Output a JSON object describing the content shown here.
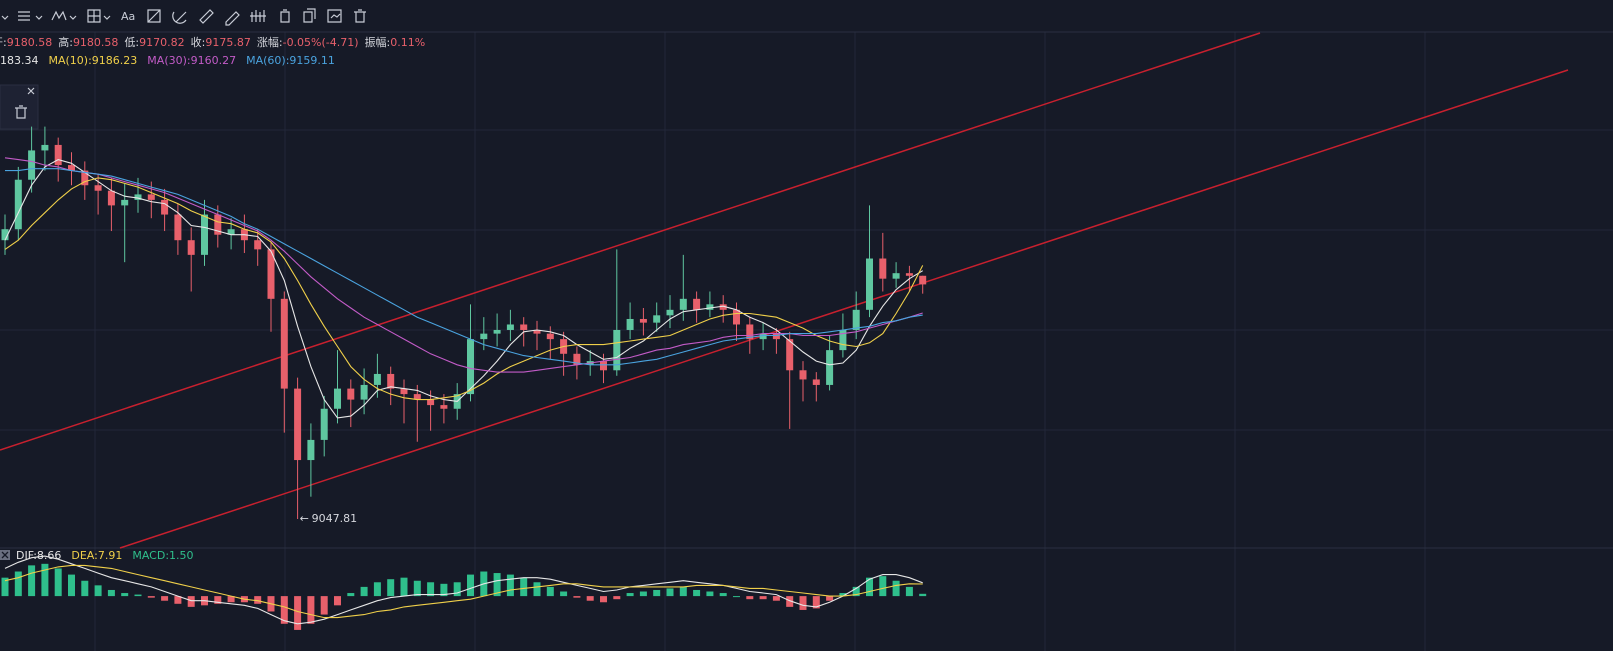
{
  "toolbar": {
    "text_tool": "Aa"
  },
  "ohlc_header": [
    {
      "label": "开:",
      "value": "9180.58"
    },
    {
      "label": "高:",
      "value": "9180.58"
    },
    {
      "label": "低:",
      "value": "9170.82"
    },
    {
      "label": "收:",
      "value": "9175.87"
    },
    {
      "label": "涨幅:",
      "value": "-0.05%(-4.71)"
    },
    {
      "label": "振幅:",
      "value": "0.11%"
    }
  ],
  "ma_legend": [
    {
      "text": "183.34",
      "color": "#e6e6e6"
    },
    {
      "text": "MA(10):9186.23",
      "color": "#f0d04a"
    },
    {
      "text": "MA(30):9160.27",
      "color": "#c25bc7"
    },
    {
      "text": "MA(60):9159.11",
      "color": "#4aa3df"
    }
  ],
  "macd_legend": [
    {
      "text": "DIF:8.66",
      "color": "#e6e6e6"
    },
    {
      "text": "DEA:7.91",
      "color": "#f0d04a"
    },
    {
      "text": "MACD:1.50",
      "color": "#2fbf8c"
    }
  ],
  "chart_data": [
    {
      "type": "candlestick",
      "ylim": [
        9032,
        9312
      ],
      "up_color": "#5fc7a0",
      "down_color": "#e8606b",
      "candles": [
        [
          9200,
          9214,
          9192,
          9206
        ],
        [
          9206,
          9240,
          9200,
          9233
        ],
        [
          9233,
          9262,
          9226,
          9249
        ],
        [
          9249,
          9262,
          9238,
          9252
        ],
        [
          9252,
          9256,
          9232,
          9241
        ],
        [
          9241,
          9248,
          9230,
          9238
        ],
        [
          9238,
          9243,
          9222,
          9230
        ],
        [
          9230,
          9236,
          9214,
          9227
        ],
        [
          9227,
          9234,
          9205,
          9219
        ],
        [
          9219,
          9231,
          9188,
          9222
        ],
        [
          9222,
          9234,
          9215,
          9225
        ],
        [
          9225,
          9232,
          9212,
          9222
        ],
        [
          9222,
          9228,
          9205,
          9214
        ],
        [
          9214,
          9220,
          9192,
          9200
        ],
        [
          9200,
          9207,
          9172,
          9192
        ],
        [
          9192,
          9222,
          9186,
          9214
        ],
        [
          9214,
          9219,
          9196,
          9203
        ],
        [
          9203,
          9212,
          9195,
          9206
        ],
        [
          9206,
          9214,
          9193,
          9200
        ],
        [
          9200,
          9206,
          9186,
          9195
        ],
        [
          9195,
          9199,
          9150,
          9168
        ],
        [
          9168,
          9172,
          9095,
          9119
        ],
        [
          9119,
          9125,
          9047.81,
          9080
        ],
        [
          9080,
          9100,
          9060,
          9091
        ],
        [
          9091,
          9115,
          9082,
          9108
        ],
        [
          9108,
          9140,
          9100,
          9119
        ],
        [
          9119,
          9124,
          9098,
          9113
        ],
        [
          9113,
          9130,
          9105,
          9121
        ],
        [
          9121,
          9138,
          9114,
          9127
        ],
        [
          9127,
          9131,
          9110,
          9119
        ],
        [
          9119,
          9124,
          9100,
          9116
        ],
        [
          9116,
          9121,
          9090,
          9113
        ],
        [
          9113,
          9118,
          9096,
          9110
        ],
        [
          9110,
          9116,
          9100,
          9108
        ],
        [
          9108,
          9122,
          9102,
          9116
        ],
        [
          9116,
          9165,
          9112,
          9146
        ],
        [
          9146,
          9158,
          9140,
          9149
        ],
        [
          9149,
          9160,
          9142,
          9151
        ],
        [
          9151,
          9162,
          9145,
          9154
        ],
        [
          9154,
          9158,
          9142,
          9151
        ],
        [
          9151,
          9156,
          9140,
          9149
        ],
        [
          9149,
          9153,
          9135,
          9146
        ],
        [
          9146,
          9150,
          9126,
          9138
        ],
        [
          9138,
          9142,
          9124,
          9132
        ],
        [
          9132,
          9140,
          9126,
          9134
        ],
        [
          9134,
          9138,
          9122,
          9129
        ],
        [
          9129,
          9195,
          9126,
          9151
        ],
        [
          9151,
          9166,
          9146,
          9157
        ],
        [
          9157,
          9163,
          9148,
          9155
        ],
        [
          9155,
          9166,
          9150,
          9159
        ],
        [
          9159,
          9170,
          9152,
          9162
        ],
        [
          9162,
          9192,
          9156,
          9168
        ],
        [
          9168,
          9172,
          9155,
          9162
        ],
        [
          9162,
          9172,
          9158,
          9165
        ],
        [
          9165,
          9170,
          9155,
          9162
        ],
        [
          9162,
          9166,
          9145,
          9154
        ],
        [
          9154,
          9158,
          9138,
          9146
        ],
        [
          9146,
          9155,
          9140,
          9149
        ],
        [
          9149,
          9152,
          9138,
          9146
        ],
        [
          9146,
          9150,
          9097,
          9129
        ],
        [
          9129,
          9134,
          9112,
          9124
        ],
        [
          9124,
          9128,
          9112,
          9121
        ],
        [
          9121,
          9148,
          9118,
          9140
        ],
        [
          9140,
          9160,
          9136,
          9151
        ],
        [
          9151,
          9172,
          9146,
          9162
        ],
        [
          9162,
          9219,
          9158,
          9190
        ],
        [
          9190,
          9204,
          9172,
          9179
        ],
        [
          9179,
          9188,
          9174,
          9182
        ],
        [
          9182,
          9186,
          9172,
          9180.58
        ],
        [
          9180.58,
          9180.58,
          9170.82,
          9175.87
        ]
      ],
      "series": [
        {
          "color": "#e6e6e6",
          "values": [
            9200,
            9215,
            9230,
            9240,
            9244,
            9242,
            9237,
            9232,
            9227,
            9224,
            9223,
            9221,
            9220,
            9215,
            9208,
            9207,
            9205,
            9203,
            9203,
            9202,
            9194,
            9178,
            9153,
            9131,
            9113,
            9103,
            9104,
            9110,
            9118,
            9120,
            9119,
            9118,
            9115,
            9113,
            9112,
            9119,
            9126,
            9134,
            9143,
            9150,
            9151,
            9150,
            9148,
            9143,
            9139,
            9135,
            9136,
            9141,
            9145,
            9151,
            9157,
            9161,
            9162,
            9163,
            9164,
            9162,
            9158,
            9155,
            9151,
            9145,
            9139,
            9134,
            9132,
            9133,
            9140,
            9153,
            9164,
            9173,
            9179,
            9183.34
          ]
        },
        {
          "color": "#f0d04a",
          "values": [
            9195,
            9200,
            9208,
            9215,
            9222,
            9228,
            9232,
            9234,
            9233,
            9231,
            9229,
            9226,
            9223,
            9220,
            9216,
            9213,
            9210,
            9209,
            9206,
            9204,
            9199,
            9190,
            9178,
            9165,
            9153,
            9142,
            9131,
            9124,
            9119,
            9116,
            9114,
            9113,
            9113,
            9114,
            9115,
            9118,
            9122,
            9127,
            9131,
            9134,
            9137,
            9140,
            9142,
            9143,
            9143,
            9143,
            9144,
            9145,
            9146,
            9147,
            9148,
            9151,
            9154,
            9157,
            9159,
            9160,
            9160,
            9159,
            9158,
            9155,
            9152,
            9148,
            9145,
            9143,
            9142,
            9144,
            9149,
            9160,
            9172,
            9186.23
          ]
        },
        {
          "color": "#c25bc7",
          "values": [
            9245,
            9244,
            9243,
            9241,
            9240,
            9238,
            9237,
            9236,
            9234,
            9232,
            9230,
            9228,
            9226,
            9223,
            9220,
            9217,
            9214,
            9211,
            9208,
            9205,
            9200,
            9194,
            9187,
            9180,
            9174,
            9168,
            9163,
            9158,
            9154,
            9150,
            9146,
            9142,
            9138,
            9135,
            9132,
            9130,
            9129,
            9128,
            9128,
            9128,
            9129,
            9130,
            9131,
            9132,
            9133,
            9134,
            9135,
            9136,
            9138,
            9140,
            9141,
            9143,
            9144,
            9145,
            9147,
            9148,
            9148,
            9149,
            9149,
            9149,
            9148,
            9148,
            9148,
            9149,
            9150,
            9152,
            9154,
            9156,
            9158,
            9160.27
          ]
        },
        {
          "color": "#4aa3df",
          "values": [
            9238,
            9238,
            9239,
            9239,
            9239,
            9238,
            9237,
            9236,
            9235,
            9233,
            9231,
            9229,
            9227,
            9225,
            9222,
            9219,
            9216,
            9213,
            9209,
            9206,
            9202,
            9198,
            9194,
            9190,
            9186,
            9182,
            9178,
            9174,
            9170,
            9166,
            9162,
            9158,
            9155,
            9152,
            9149,
            9146,
            9143,
            9141,
            9139,
            9137,
            9136,
            9135,
            9134,
            9133,
            9132,
            9132,
            9132,
            9133,
            9134,
            9135,
            9137,
            9139,
            9141,
            9143,
            9145,
            9146,
            9147,
            9148,
            9148,
            9149,
            9149,
            9149,
            9150,
            9151,
            9152,
            9153,
            9155,
            9156,
            9158,
            9159.11
          ]
        }
      ]
    },
    {
      "type": "macd",
      "ylim": [
        -24,
        30
      ],
      "up_color": "#2fbf8c",
      "down_color": "#e8606b",
      "histogram": [
        12,
        16,
        20,
        21,
        18,
        14,
        10,
        7,
        4,
        2,
        1,
        -1,
        -3,
        -5,
        -7,
        -6,
        -5,
        -4,
        -4,
        -5,
        -10,
        -18,
        -22,
        -18,
        -12,
        -6,
        2,
        6,
        9,
        11,
        12,
        10,
        9,
        8,
        9,
        14,
        16,
        15,
        14,
        12,
        9,
        6,
        3,
        -1,
        -3,
        -4,
        -2,
        2,
        3,
        4,
        5,
        6,
        4,
        3,
        2,
        0,
        -2,
        -2,
        -3,
        -7,
        -9,
        -8,
        -3,
        2,
        6,
        12,
        13,
        10,
        6,
        1.5
      ],
      "series": [
        {
          "color": "#e6e6e6",
          "values": [
            18,
            22,
            25,
            26,
            24,
            21,
            18,
            15,
            12,
            10,
            8,
            6,
            3,
            0,
            -3,
            -3,
            -4,
            -5,
            -6,
            -8,
            -12,
            -16,
            -18,
            -17,
            -15,
            -12,
            -9,
            -6,
            -3,
            -1,
            0,
            1,
            1,
            1,
            2,
            5,
            8,
            10,
            11,
            12,
            12,
            11,
            9,
            7,
            5,
            3,
            4,
            6,
            7,
            8,
            9,
            10,
            9,
            8,
            7,
            5,
            3,
            2,
            1,
            -3,
            -6,
            -7,
            -4,
            0,
            5,
            11,
            14,
            14,
            12,
            8.66
          ]
        },
        {
          "color": "#f0d04a",
          "values": [
            10,
            12,
            15,
            17,
            19,
            20,
            20,
            19,
            18,
            16,
            14,
            12,
            10,
            8,
            6,
            4,
            2,
            0,
            -2,
            -3,
            -5,
            -7,
            -10,
            -12,
            -14,
            -14,
            -13,
            -12,
            -10,
            -9,
            -7,
            -6,
            -5,
            -4,
            -3,
            -2,
            0,
            2,
            4,
            5,
            6,
            7,
            8,
            8,
            7,
            6,
            6,
            6,
            6,
            6,
            6,
            6,
            7,
            7,
            7,
            6,
            5,
            5,
            4,
            3,
            2,
            1,
            0,
            0,
            1,
            3,
            5,
            7,
            8,
            7.91
          ]
        }
      ]
    }
  ]
}
